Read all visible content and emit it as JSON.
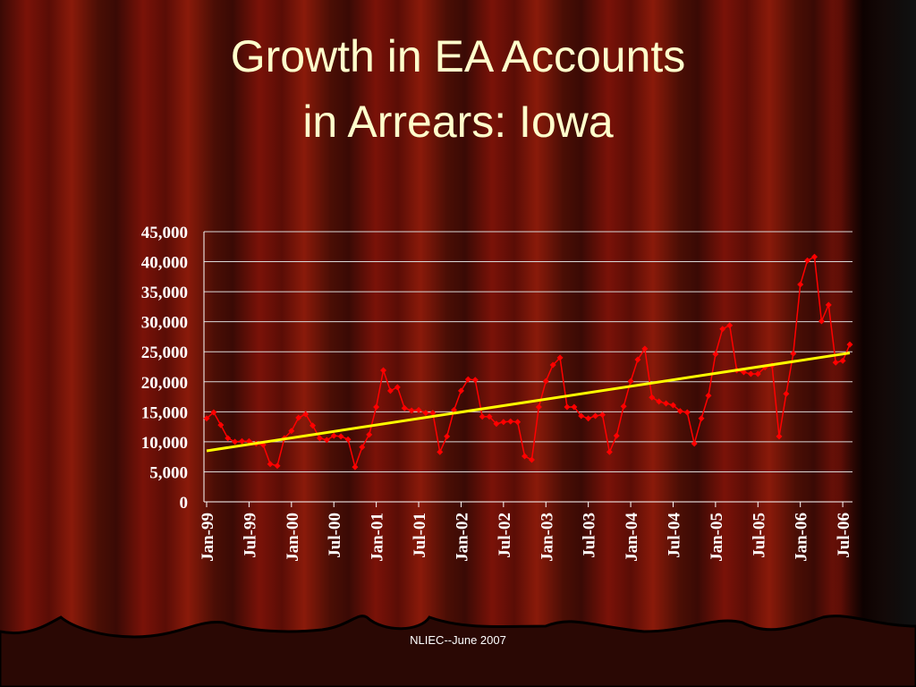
{
  "chart_data": {
    "type": "line",
    "title": [
      "Growth in EA Accounts",
      "in Arrears: Iowa"
    ],
    "categories": [
      "Jan-99",
      null,
      null,
      null,
      null,
      null,
      "Jul-99",
      null,
      null,
      null,
      null,
      null,
      "Jan-00",
      null,
      null,
      null,
      null,
      null,
      "Jul-00",
      null,
      null,
      null,
      null,
      null,
      "Jan-01",
      null,
      null,
      null,
      null,
      null,
      "Jul-01",
      null,
      null,
      null,
      null,
      null,
      "Jan-02",
      null,
      null,
      null,
      null,
      null,
      "Jul-02",
      null,
      null,
      null,
      null,
      null,
      "Jan-03",
      null,
      null,
      null,
      null,
      null,
      "Jul-03",
      null,
      null,
      null,
      null,
      null,
      "Jan-04",
      null,
      null,
      null,
      null,
      null,
      "Jul-04",
      null,
      null,
      null,
      null,
      null,
      "Jan-05",
      null,
      null,
      null,
      null,
      null,
      "Jul-05",
      null,
      null,
      null,
      null,
      null,
      "Jan-06",
      null,
      null,
      null,
      null,
      null,
      "Jul-06",
      null
    ],
    "series": [
      {
        "color": "#ff0000",
        "values": [
          13900,
          14900,
          12800,
          10600,
          10000,
          10100,
          10100,
          9700,
          9500,
          6300,
          6000,
          10600,
          11800,
          14000,
          14600,
          12700,
          10600,
          10300,
          11000,
          10900,
          10400,
          5800,
          9100,
          11200,
          15800,
          21900,
          18500,
          19100,
          15600,
          15200,
          15300,
          14800,
          14800,
          8300,
          10900,
          15300,
          18500,
          20400,
          20300,
          14200,
          14200,
          13000,
          13300,
          13400,
          13300,
          7600,
          7000,
          15800,
          20100,
          22800,
          24000,
          15800,
          15800,
          14300,
          13900,
          14300,
          14500,
          8300,
          11000,
          15900,
          20100,
          23700,
          25500,
          17400,
          16700,
          16400,
          16100,
          15100,
          14900,
          9700,
          13900,
          17700,
          24600,
          28800,
          29400,
          21900,
          21600,
          21300,
          21300,
          22400,
          22700,
          10900,
          18000,
          24700,
          36200,
          40200,
          40800,
          30100,
          32800,
          23200,
          23500,
          26200
        ]
      }
    ],
    "trendline": {
      "color": "#ffff00",
      "values": [
        8500,
        24800
      ]
    },
    "ylim": [
      0,
      45000
    ],
    "yticks": [
      0,
      {
        "value": 5000,
        "label": "5,000"
      },
      {
        "value": 10000,
        "label": "10,000"
      },
      {
        "value": 15000,
        "label": "15,000"
      },
      {
        "value": 20000,
        "label": "20,000"
      },
      {
        "value": 25000,
        "label": "25,000"
      },
      {
        "value": 30000,
        "label": "30,000"
      },
      {
        "value": 35000,
        "label": "35,000"
      },
      {
        "value": 40000,
        "label": "40,000"
      },
      {
        "value": 45000,
        "label": "45,000"
      }
    ],
    "grid": true
  },
  "footer": "NLIEC--June 2007"
}
